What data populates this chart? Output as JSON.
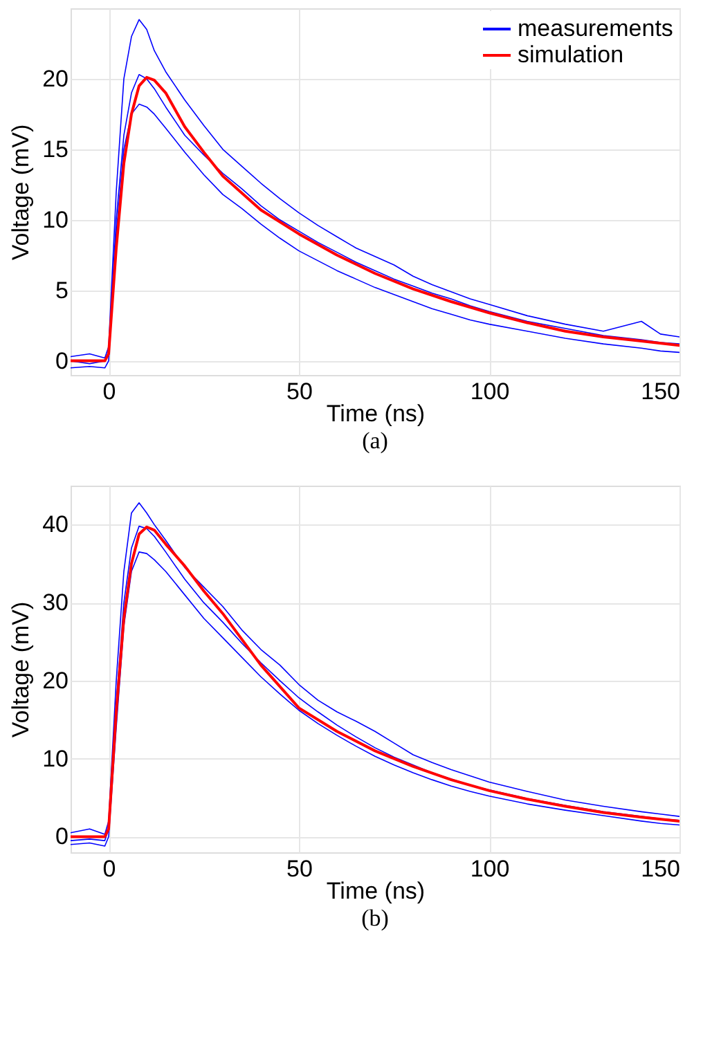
{
  "chart_data": [
    {
      "type": "line",
      "xlabel": "Time (ns)",
      "ylabel": "Voltage (mV)",
      "annotations": [
        "(a)"
      ],
      "xlim": [
        -10,
        150
      ],
      "ylim": [
        -1,
        25
      ],
      "xticks": [
        0,
        50,
        100,
        150
      ],
      "yticks": [
        0,
        5,
        10,
        15,
        20
      ],
      "grid": true,
      "legend": "top right",
      "series": [
        {
          "name": "measurements",
          "color": "#0000ff",
          "x": [
            -10,
            -5,
            -1,
            0,
            2,
            4,
            6,
            8,
            10,
            12,
            15,
            20,
            25,
            30,
            35,
            40,
            45,
            50,
            55,
            60,
            65,
            70,
            75,
            80,
            85,
            90,
            95,
            100,
            110,
            120,
            130,
            140,
            145,
            150
          ],
          "values": [
            0,
            -0.2,
            0,
            0.5,
            10,
            16,
            19,
            20.3,
            20,
            19.3,
            18,
            16,
            14.6,
            13.3,
            12.2,
            11,
            10,
            9.2,
            8.4,
            7.7,
            7,
            6.4,
            5.8,
            5.3,
            4.8,
            4.4,
            3.9,
            3.5,
            2.8,
            2.3,
            1.8,
            1.5,
            1.3,
            1.2
          ]
        },
        {
          "color": "#0000ff",
          "x": [
            -10,
            -5,
            -1,
            0,
            2,
            4,
            6,
            8,
            10,
            12,
            15,
            20,
            25,
            30,
            35,
            40,
            45,
            50,
            55,
            60,
            65,
            70,
            75,
            80,
            85,
            90,
            95,
            100,
            110,
            120,
            130,
            140,
            145,
            150
          ],
          "values": [
            0.3,
            0.5,
            0.2,
            1,
            12,
            20,
            23,
            24.2,
            23.5,
            22,
            20.5,
            18.5,
            16.7,
            15,
            13.8,
            12.6,
            11.5,
            10.5,
            9.6,
            8.8,
            8,
            7.4,
            6.8,
            6,
            5.4,
            4.9,
            4.4,
            4,
            3.2,
            2.6,
            2.1,
            2.8,
            1.9,
            1.7
          ]
        },
        {
          "color": "#0000ff",
          "x": [
            -10,
            -5,
            -1,
            0,
            2,
            4,
            6,
            8,
            10,
            12,
            15,
            20,
            25,
            30,
            35,
            40,
            45,
            50,
            55,
            60,
            65,
            70,
            75,
            80,
            85,
            90,
            95,
            100,
            110,
            120,
            130,
            140,
            145,
            150
          ],
          "values": [
            -0.5,
            -0.4,
            -0.5,
            0,
            9,
            15,
            17.5,
            18.2,
            18,
            17.5,
            16.5,
            14.8,
            13.2,
            11.8,
            10.8,
            9.7,
            8.7,
            7.8,
            7.1,
            6.4,
            5.8,
            5.2,
            4.7,
            4.2,
            3.7,
            3.3,
            2.9,
            2.6,
            2.1,
            1.6,
            1.2,
            0.9,
            0.7,
            0.6
          ]
        },
        {
          "name": "simulation",
          "color": "#ff0000",
          "x": [
            -10,
            -1,
            0,
            2,
            4,
            6,
            8,
            10,
            12,
            15,
            20,
            25,
            30,
            40,
            50,
            60,
            70,
            80,
            90,
            100,
            110,
            120,
            130,
            140,
            150
          ],
          "values": [
            0,
            0,
            0.5,
            8,
            14,
            17.5,
            19.5,
            20.1,
            19.9,
            19,
            16.6,
            14.8,
            13.1,
            10.7,
            9,
            7.5,
            6.2,
            5.1,
            4.2,
            3.4,
            2.7,
            2.1,
            1.7,
            1.4,
            1.1
          ]
        }
      ]
    },
    {
      "type": "line",
      "xlabel": "Time (ns)",
      "ylabel": "Voltage (mV)",
      "annotations": [
        "(b)"
      ],
      "xlim": [
        -10,
        150
      ],
      "ylim": [
        -2,
        45
      ],
      "xticks": [
        0,
        50,
        100,
        150
      ],
      "yticks": [
        0,
        10,
        20,
        30,
        40
      ],
      "grid": true,
      "legend": "top right",
      "series": [
        {
          "name": "measurements",
          "color": "#0000ff",
          "x": [
            -10,
            -5,
            -1,
            0,
            2,
            4,
            6,
            8,
            10,
            12,
            15,
            20,
            25,
            30,
            35,
            40,
            45,
            50,
            55,
            60,
            65,
            70,
            75,
            80,
            85,
            90,
            95,
            100,
            110,
            120,
            130,
            140,
            145,
            150
          ],
          "values": [
            -0.5,
            -0.3,
            -0.5,
            1,
            17,
            30,
            37,
            39.8,
            39.5,
            38.5,
            36.5,
            33,
            30,
            27.5,
            24.8,
            22.3,
            20,
            17.8,
            16,
            14.3,
            12.8,
            11.4,
            10.2,
            9.2,
            8.2,
            7.4,
            6.6,
            6,
            4.9,
            4,
            3.2,
            2.6,
            2.3,
            2.1
          ]
        },
        {
          "color": "#0000ff",
          "x": [
            -10,
            -5,
            -1,
            0,
            2,
            4,
            6,
            8,
            10,
            12,
            15,
            20,
            25,
            30,
            35,
            40,
            45,
            50,
            55,
            60,
            65,
            70,
            75,
            80,
            85,
            90,
            95,
            100,
            110,
            120,
            130,
            140,
            145,
            150
          ],
          "values": [
            0.5,
            1,
            0.3,
            2,
            20,
            34,
            41.5,
            42.8,
            41.5,
            40,
            38,
            34.5,
            32,
            29.5,
            26.5,
            24,
            22,
            19.5,
            17.5,
            16,
            14.8,
            13.5,
            12,
            10.5,
            9.5,
            8.6,
            7.8,
            7,
            5.8,
            4.7,
            3.9,
            3.2,
            2.9,
            2.6
          ]
        },
        {
          "color": "#0000ff",
          "x": [
            -10,
            -5,
            -1,
            0,
            2,
            4,
            6,
            8,
            10,
            12,
            15,
            20,
            25,
            30,
            35,
            40,
            45,
            50,
            55,
            60,
            65,
            70,
            75,
            80,
            85,
            90,
            95,
            100,
            110,
            120,
            130,
            140,
            145,
            150
          ],
          "values": [
            -1,
            -0.8,
            -1.2,
            0,
            14,
            27,
            34,
            36.5,
            36.3,
            35.5,
            34,
            31,
            28,
            25.5,
            23,
            20.5,
            18.3,
            16.2,
            14.5,
            13,
            11.6,
            10.3,
            9.2,
            8.2,
            7.3,
            6.5,
            5.8,
            5.2,
            4.2,
            3.4,
            2.7,
            2,
            1.7,
            1.5
          ]
        },
        {
          "name": "simulation",
          "color": "#ff0000",
          "x": [
            -10,
            -1,
            0,
            2,
            4,
            6,
            8,
            10,
            12,
            15,
            20,
            25,
            30,
            40,
            50,
            60,
            70,
            80,
            90,
            100,
            110,
            120,
            130,
            140,
            150
          ],
          "values": [
            0,
            0,
            1,
            16,
            28,
            35,
            38.8,
            39.7,
            39.3,
            37.5,
            34.7,
            31.5,
            28.6,
            22,
            16.5,
            13.5,
            11,
            9,
            7.3,
            5.9,
            4.8,
            3.9,
            3.1,
            2.5,
            2
          ]
        }
      ]
    }
  ]
}
